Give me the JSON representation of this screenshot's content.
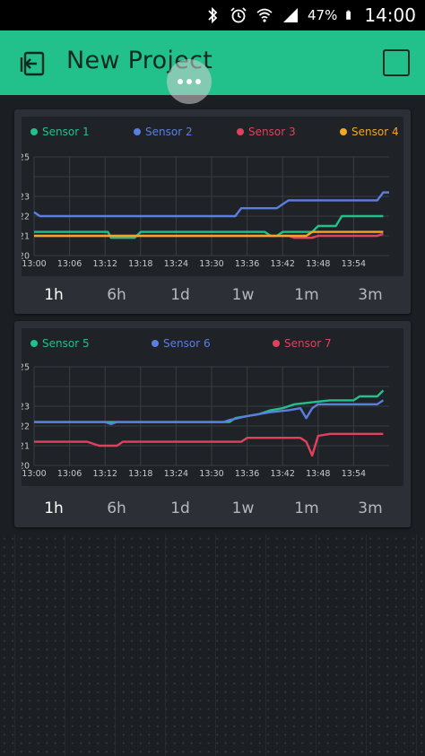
{
  "status_bar": {
    "battery_percent": "47%",
    "time": "14:00",
    "icons": [
      "bluetooth-icon",
      "alarm-icon",
      "wifi-icon",
      "signal-icon",
      "battery-icon"
    ]
  },
  "app_bar": {
    "title": "New Project",
    "background": "#22c08a"
  },
  "charts": [
    {
      "time_ranges": [
        "1h",
        "6h",
        "1d",
        "1w",
        "1m",
        "3m"
      ],
      "selected_range": "1h"
    },
    {
      "time_ranges": [
        "1h",
        "6h",
        "1d",
        "1w",
        "1m",
        "3m"
      ],
      "selected_range": "1h"
    }
  ],
  "chart_data": [
    {
      "type": "line",
      "legend_position": "top",
      "grid": true,
      "ylim": [
        20,
        25
      ],
      "yticks": [
        "25",
        "23",
        "22",
        "21",
        "20"
      ],
      "xticks": [
        "13:00",
        "13:06",
        "13:12",
        "13:18",
        "13:24",
        "13:30",
        "13:36",
        "13:42",
        "13:48",
        "13:54"
      ],
      "xlim_minutes": [
        0,
        60
      ],
      "series": [
        {
          "name": "Sensor 1",
          "color": "#22c08a",
          "points": [
            [
              0,
              21.2
            ],
            [
              12.5,
              21.2
            ],
            [
              13,
              20.9
            ],
            [
              17,
              20.9
            ],
            [
              18,
              21.2
            ],
            [
              39,
              21.2
            ],
            [
              40,
              21.0
            ],
            [
              41,
              21.0
            ],
            [
              42,
              21.2
            ],
            [
              47,
              21.2
            ],
            [
              48,
              21.5
            ],
            [
              51,
              21.5
            ],
            [
              52,
              22.0
            ],
            [
              59,
              22.0
            ]
          ]
        },
        {
          "name": "Sensor 2",
          "color": "#5b7fe0",
          "points": [
            [
              0,
              22.2
            ],
            [
              1,
              22.0
            ],
            [
              34,
              22.0
            ],
            [
              35,
              22.4
            ],
            [
              41,
              22.4
            ],
            [
              42,
              22.6
            ],
            [
              43,
              22.8
            ],
            [
              58,
              22.8
            ],
            [
              59,
              23.2
            ],
            [
              60,
              23.2
            ]
          ]
        },
        {
          "name": "Sensor 3",
          "color": "#e0425e",
          "points": [
            [
              0,
              21.0
            ],
            [
              43,
              21.0
            ],
            [
              44,
              20.9
            ],
            [
              47,
              20.9
            ],
            [
              48,
              21.0
            ],
            [
              58,
              21.0
            ],
            [
              59,
              21.1
            ]
          ]
        },
        {
          "name": "Sensor 4",
          "color": "#f5a623",
          "points": [
            [
              0,
              21.0
            ],
            [
              46,
              21.0
            ],
            [
              47,
              21.2
            ],
            [
              59,
              21.2
            ]
          ]
        }
      ]
    },
    {
      "type": "line",
      "legend_position": "top",
      "grid": true,
      "ylim": [
        20,
        25
      ],
      "yticks": [
        "25",
        "23",
        "22",
        "21",
        "20"
      ],
      "xticks": [
        "13:00",
        "13:06",
        "13:12",
        "13:18",
        "13:24",
        "13:30",
        "13:36",
        "13:42",
        "13:48",
        "13:54"
      ],
      "xlim_minutes": [
        0,
        60
      ],
      "series": [
        {
          "name": "Sensor 5",
          "color": "#22c08a",
          "points": [
            [
              0,
              22.2
            ],
            [
              33,
              22.2
            ],
            [
              34,
              22.4
            ],
            [
              38,
              22.6
            ],
            [
              40,
              22.8
            ],
            [
              42,
              22.9
            ],
            [
              44,
              23.1
            ],
            [
              47,
              23.2
            ],
            [
              50,
              23.3
            ],
            [
              54,
              23.3
            ],
            [
              55,
              23.5
            ],
            [
              58,
              23.5
            ],
            [
              59,
              23.8
            ]
          ]
        },
        {
          "name": "Sensor 6",
          "color": "#5b7fe0",
          "points": [
            [
              0,
              22.2
            ],
            [
              12,
              22.2
            ],
            [
              13,
              22.1
            ],
            [
              14,
              22.2
            ],
            [
              32,
              22.2
            ],
            [
              33,
              22.3
            ],
            [
              36,
              22.5
            ],
            [
              40,
              22.7
            ],
            [
              43,
              22.8
            ],
            [
              45,
              22.9
            ],
            [
              46,
              22.4
            ],
            [
              47,
              22.9
            ],
            [
              48,
              23.1
            ],
            [
              58,
              23.1
            ],
            [
              59,
              23.3
            ]
          ]
        },
        {
          "name": "Sensor 7",
          "color": "#e0425e",
          "points": [
            [
              0,
              21.2
            ],
            [
              9,
              21.2
            ],
            [
              11,
              21.0
            ],
            [
              14,
              21.0
            ],
            [
              15,
              21.2
            ],
            [
              35,
              21.2
            ],
            [
              36,
              21.4
            ],
            [
              45,
              21.4
            ],
            [
              46,
              21.2
            ],
            [
              47,
              20.5
            ],
            [
              48,
              21.5
            ],
            [
              50,
              21.6
            ],
            [
              59,
              21.6
            ]
          ]
        }
      ]
    }
  ]
}
